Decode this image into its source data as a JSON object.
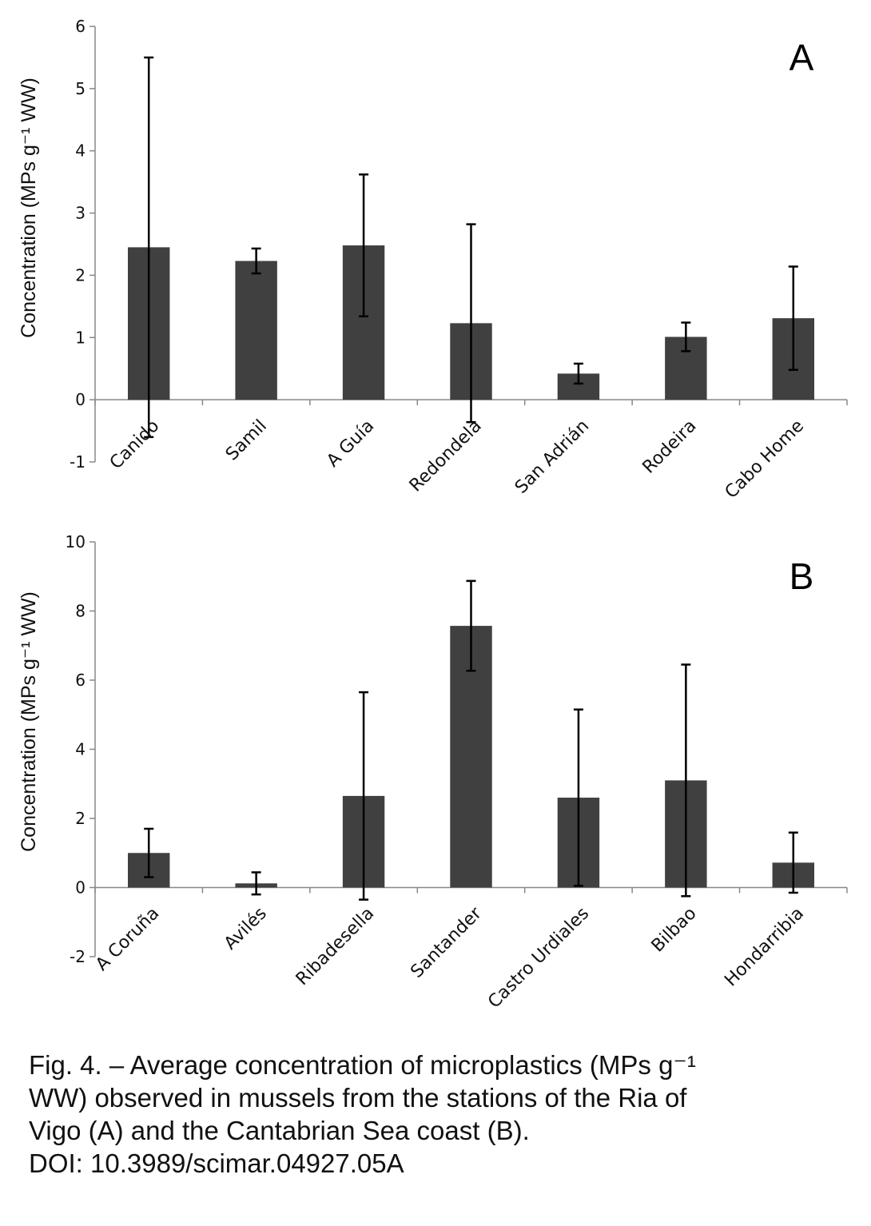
{
  "chart_data": [
    {
      "type": "bar",
      "panel_label": "A",
      "ylabel": "Concentration (MPs g⁻¹ WW)",
      "ylim": [
        -1,
        6
      ],
      "yticks": [
        -1,
        0,
        1,
        2,
        3,
        4,
        5,
        6
      ],
      "categories": [
        "Canido",
        "Samil",
        "A Guía",
        "Redondela",
        "San Adrián",
        "Rodeira",
        "Cabo Home"
      ],
      "values": [
        2.45,
        2.23,
        2.48,
        1.23,
        0.42,
        1.01,
        1.31
      ],
      "error": [
        3.05,
        0.2,
        1.14,
        1.59,
        0.16,
        0.23,
        0.83
      ],
      "bar_color": "#404040",
      "grid": false
    },
    {
      "type": "bar",
      "panel_label": "B",
      "ylabel": "Concentration (MPs g⁻¹ WW)",
      "ylim": [
        -2,
        10
      ],
      "yticks": [
        -2,
        0,
        2,
        4,
        6,
        8,
        10
      ],
      "categories": [
        "A Coruña",
        "Avilés",
        "Ribadesella",
        "Santander",
        "Castro Urdiales",
        "Bilbao",
        "Hondarribia"
      ],
      "values": [
        1.0,
        0.12,
        2.65,
        7.57,
        2.6,
        3.1,
        0.72
      ],
      "error": [
        0.7,
        0.32,
        3.0,
        1.3,
        2.55,
        3.35,
        0.87
      ],
      "bar_color": "#404040",
      "grid": false
    }
  ],
  "caption": {
    "line1": "Fig. 4. – Average concentration of microplastics (MPs g⁻¹",
    "line2": "WW) observed in mussels from the stations of the Ria of",
    "line3": "Vigo (A) and the Cantabrian Sea coast (B).",
    "line4": "DOI: 10.3989/scimar.04927.05A"
  }
}
